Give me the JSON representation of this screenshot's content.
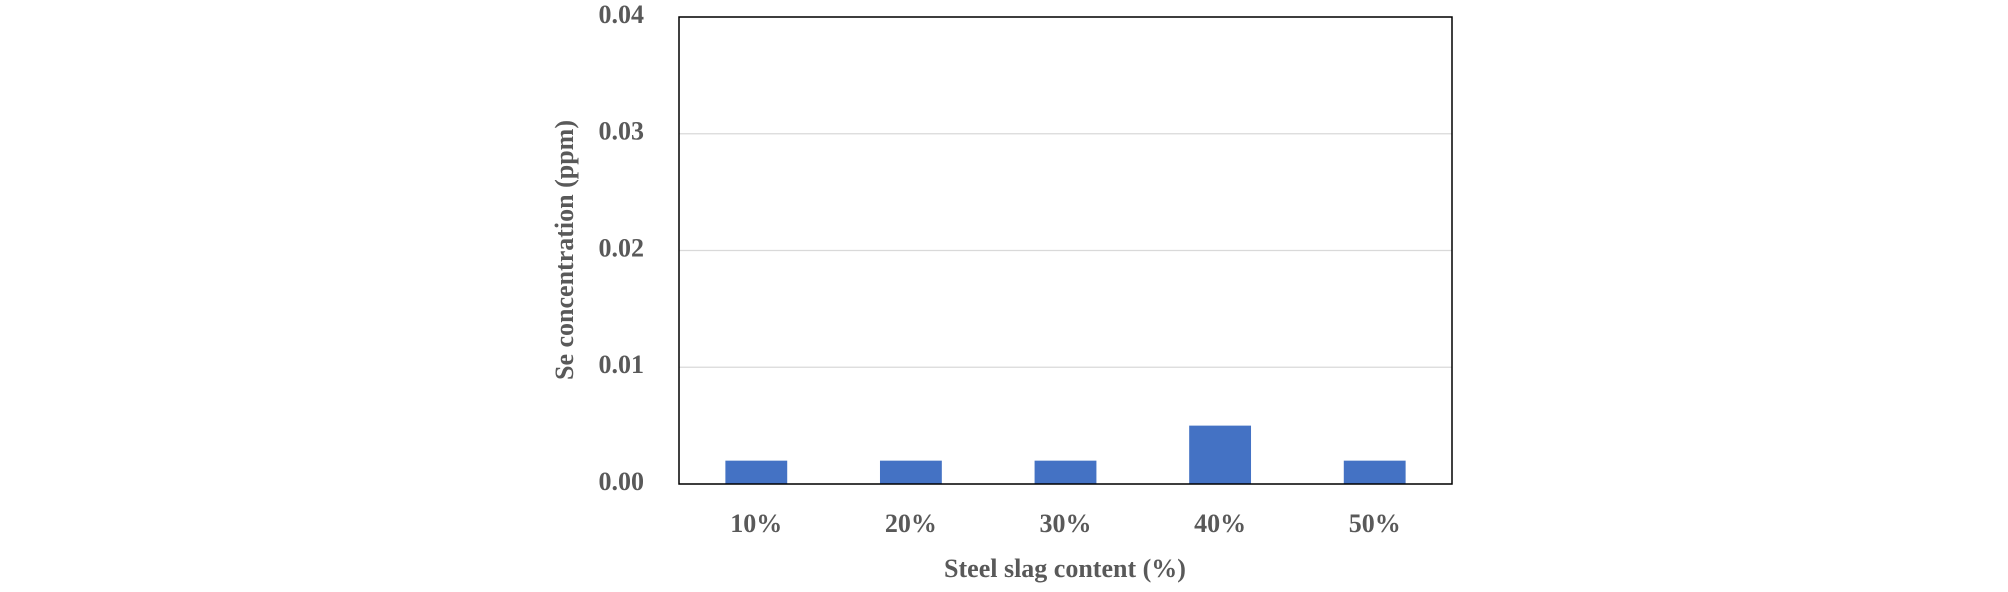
{
  "chart_data": {
    "type": "bar",
    "x_label": "Steel slag content (%)",
    "y_label": "Se concentration (ppm)",
    "categories": [
      "10%",
      "20%",
      "30%",
      "40%",
      "50%"
    ],
    "values": [
      0.002,
      0.002,
      0.002,
      0.005,
      0.002
    ],
    "color": "#4472c4",
    "ylim": [
      0,
      0.04
    ],
    "yticks": [
      {
        "value": 0,
        "label": "0.00"
      },
      0.01,
      0.02,
      0.03,
      0.04
    ],
    "grid": true
  }
}
